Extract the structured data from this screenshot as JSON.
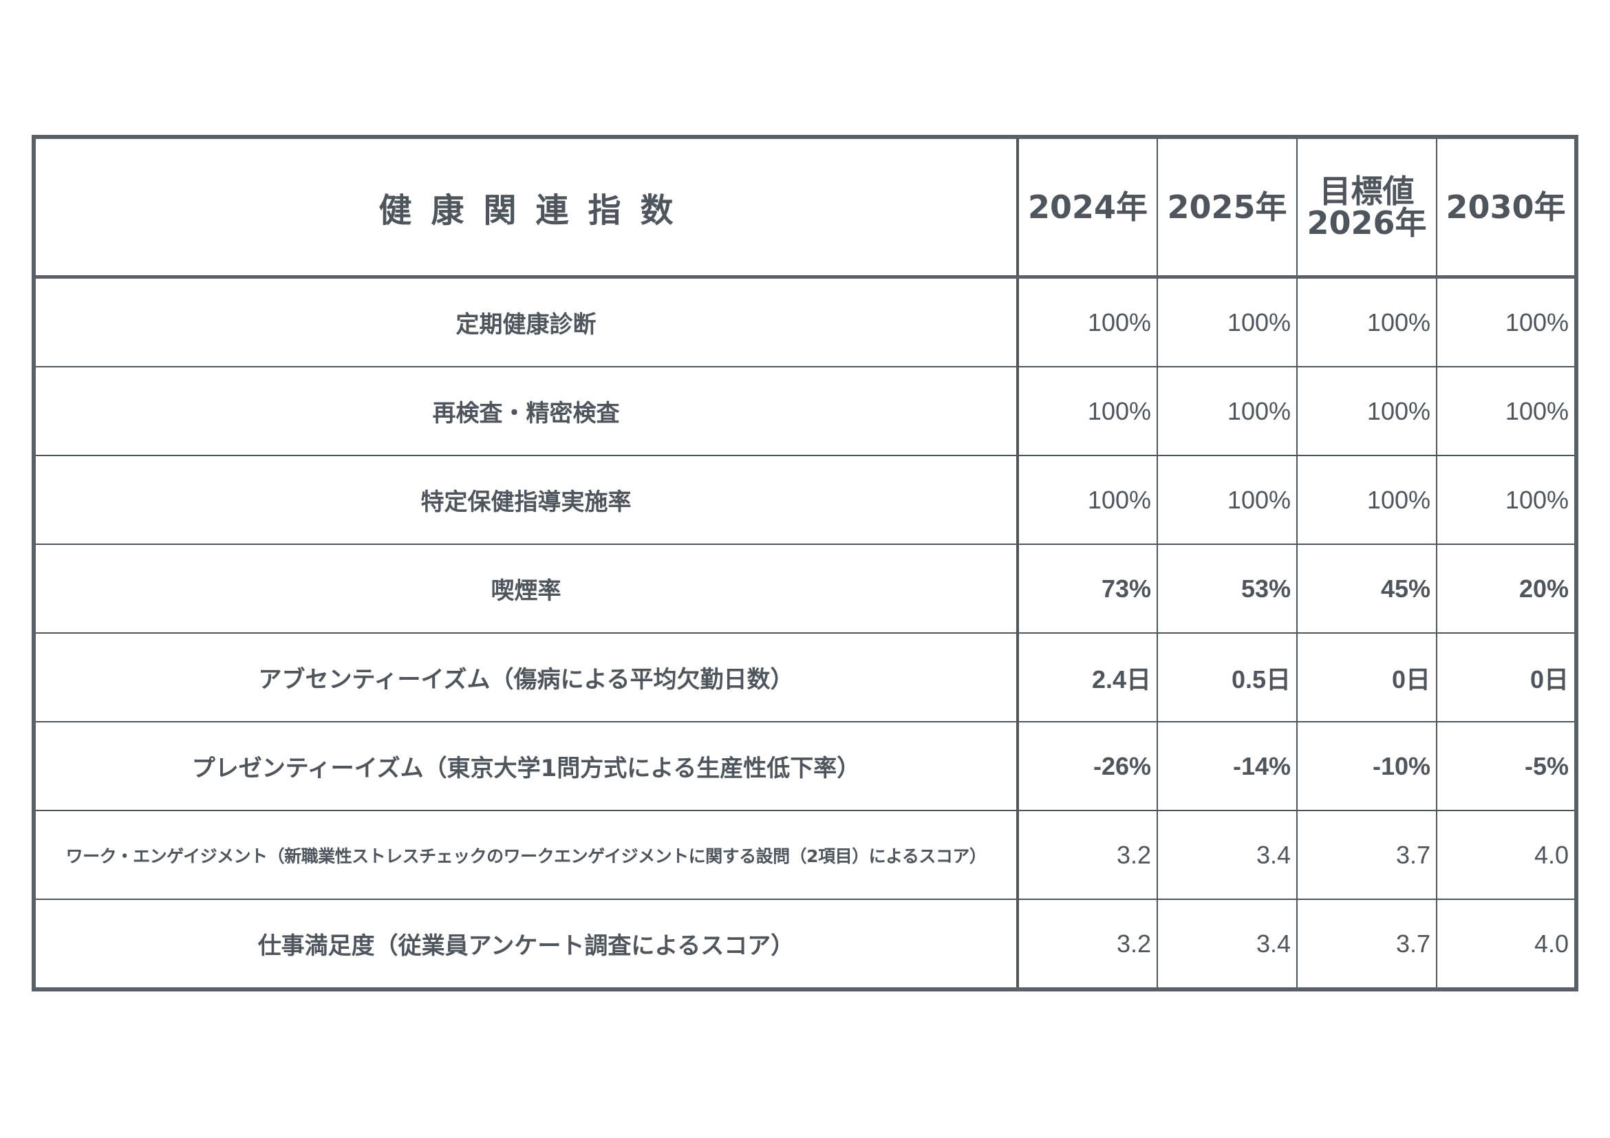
{
  "table": {
    "title": "健康関連指数",
    "columns": [
      {
        "label": "2024年"
      },
      {
        "label": "2025年"
      },
      {
        "label_line1": "目標値",
        "label_line2": "2026年"
      },
      {
        "label": "2030年"
      }
    ],
    "rows": [
      {
        "label": "定期健康診断",
        "values": [
          "100%",
          "100%",
          "100%",
          "100%"
        ]
      },
      {
        "label": "再検査・精密検査",
        "values": [
          "100%",
          "100%",
          "100%",
          "100%"
        ]
      },
      {
        "label": "特定保健指導実施率",
        "values": [
          "100%",
          "100%",
          "100%",
          "100%"
        ]
      },
      {
        "label": "喫煙率",
        "values": [
          "73%",
          "53%",
          "45%",
          "20%"
        ]
      },
      {
        "label": "アブセンティーイズム（傷病による平均欠勤日数）",
        "values": [
          "2.4日",
          "0.5日",
          "0日",
          "0日"
        ]
      },
      {
        "label": "プレゼンティーイズム（東京大学1問方式による生産性低下率）",
        "values": [
          "-26%",
          "-14%",
          "-10%",
          "-5%"
        ]
      },
      {
        "label": "ワーク・エンゲイジメント（新職業性ストレスチェックのワークエンゲイジメントに関する設問（2項目）によるスコア）",
        "values": [
          "3.2",
          "3.4",
          "3.7",
          "4.0"
        ]
      },
      {
        "label": "仕事満足度（従業員アンケート調査によるスコア）",
        "values": [
          "3.2",
          "3.4",
          "3.7",
          "4.0"
        ]
      }
    ]
  },
  "colors": {
    "text": "#4f555c",
    "border": "#5a6068",
    "background": "#ffffff"
  }
}
